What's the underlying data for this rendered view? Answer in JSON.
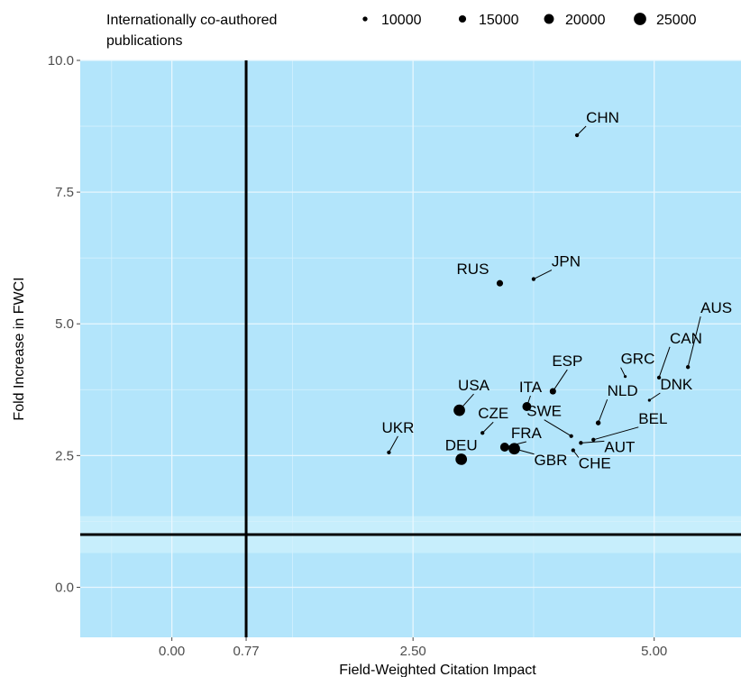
{
  "chart_data": {
    "type": "scatter",
    "title": "",
    "xlabel": "Field-Weighted Citation Impact",
    "ylabel": "Fold Increase in FWCI",
    "xlim": [
      -0.95,
      5.9
    ],
    "ylim": [
      -0.95,
      10.0
    ],
    "x_ticks": [
      {
        "value": 0.0,
        "label": "0.00"
      },
      {
        "value": 0.77,
        "label": "0.77"
      },
      {
        "value": 2.5,
        "label": "2.50"
      },
      {
        "value": 5.0,
        "label": "5.00"
      }
    ],
    "y_ticks": [
      {
        "value": 0.0,
        "label": "0.0"
      },
      {
        "value": 2.5,
        "label": "2.5"
      },
      {
        "value": 5.0,
        "label": "5.0"
      },
      {
        "value": 7.5,
        "label": "7.5"
      },
      {
        "value": 10.0,
        "label": "10.0"
      }
    ],
    "reference_lines": {
      "x": 0.77,
      "y": 1.0
    },
    "grid": true,
    "legend": {
      "title": "Internationally co-authored publications",
      "title_lines": [
        "Internationally co-authored",
        "publications"
      ],
      "position": "top",
      "entries": [
        {
          "label": "10000",
          "value": 10000
        },
        {
          "label": "15000",
          "value": 15000
        },
        {
          "label": "20000",
          "value": 20000
        },
        {
          "label": "25000",
          "value": 25000
        }
      ]
    },
    "points": [
      {
        "label": "CHN",
        "x": 4.2,
        "y": 8.58,
        "size": 10000
      },
      {
        "label": "RUS",
        "x": 3.4,
        "y": 5.77,
        "size": 15000
      },
      {
        "label": "JPN",
        "x": 3.75,
        "y": 5.85,
        "size": 10000
      },
      {
        "label": "AUS",
        "x": 5.35,
        "y": 4.18,
        "size": 10000
      },
      {
        "label": "CAN",
        "x": 5.05,
        "y": 3.98,
        "size": 10000
      },
      {
        "label": "GRC",
        "x": 4.7,
        "y": 4.0,
        "size": 8000
      },
      {
        "label": "DNK",
        "x": 4.95,
        "y": 3.55,
        "size": 8000
      },
      {
        "label": "ESP",
        "x": 3.95,
        "y": 3.72,
        "size": 15000
      },
      {
        "label": "ITA",
        "x": 3.68,
        "y": 3.43,
        "size": 20000
      },
      {
        "label": "NLD",
        "x": 4.42,
        "y": 3.12,
        "size": 12000
      },
      {
        "label": "USA",
        "x": 2.98,
        "y": 3.36,
        "size": 25000
      },
      {
        "label": "CZE",
        "x": 3.22,
        "y": 2.93,
        "size": 10000
      },
      {
        "label": "SWE",
        "x": 4.14,
        "y": 2.87,
        "size": 10000
      },
      {
        "label": "BEL",
        "x": 4.37,
        "y": 2.8,
        "size": 10000
      },
      {
        "label": "AUT",
        "x": 4.24,
        "y": 2.74,
        "size": 10000
      },
      {
        "label": "FRA",
        "x": 3.45,
        "y": 2.66,
        "size": 20000
      },
      {
        "label": "GBR",
        "x": 3.55,
        "y": 2.63,
        "size": 25000
      },
      {
        "label": "CHE",
        "x": 4.16,
        "y": 2.6,
        "size": 10000
      },
      {
        "label": "UKR",
        "x": 2.25,
        "y": 2.56,
        "size": 10000
      },
      {
        "label": "DEU",
        "x": 3.0,
        "y": 2.43,
        "size": 25000
      }
    ]
  }
}
